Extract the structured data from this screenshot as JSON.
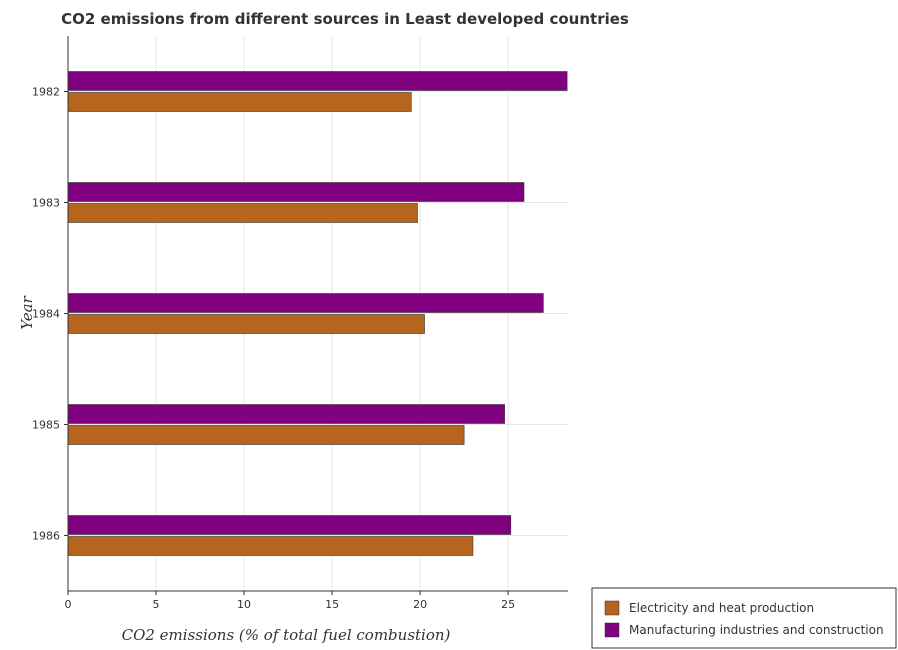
{
  "chart_data": {
    "type": "bar",
    "orientation": "horizontal",
    "title": "CO2 emissions from different sources in Least developed countries",
    "xlabel": "CO2 emissions (% of total fuel combustion)",
    "ylabel": "Year",
    "categories": [
      "1982",
      "1983",
      "1984",
      "1985",
      "1986"
    ],
    "xlim": [
      0,
      28.4
    ],
    "xticks": [
      0,
      5,
      10,
      15,
      20,
      25
    ],
    "grid": true,
    "legend_position": "bottom-right",
    "series": [
      {
        "name": "Electricity and heat production",
        "color": "#b5651d",
        "values": [
          19.5,
          19.85,
          20.25,
          22.5,
          23.0
        ]
      },
      {
        "name": "Manufacturing industries and construction",
        "color": "#800080",
        "values": [
          28.35,
          25.9,
          27.0,
          24.8,
          25.15
        ]
      }
    ]
  }
}
